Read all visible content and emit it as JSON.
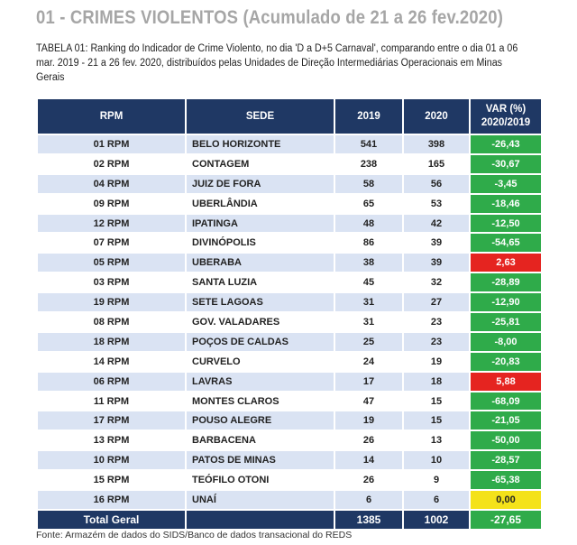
{
  "title": "01 - CRIMES VIOLENTOS (Acumulado de 21 a 26 fev.2020)",
  "caption": "TABELA 01: Ranking do Indicador de Crime Violento, no dia 'D a D+5 Carnaval', comparando entre o dia 01 a 06 mar. 2019 - 21 a 26 fev. 2020, distribuídos pelas Unidades de Direção Intermediárias Operacionais em Minas Gerais",
  "table": {
    "headers": [
      "RPM",
      "SEDE",
      "2019",
      "2020",
      "VAR (%)",
      "2020/2019"
    ],
    "rows": [
      {
        "rpm": "01 RPM",
        "sede": "BELO HORIZONTE",
        "y2019": "541",
        "y2020": "398",
        "var": "-26,43",
        "status": "green"
      },
      {
        "rpm": "02 RPM",
        "sede": "CONTAGEM",
        "y2019": "238",
        "y2020": "165",
        "var": "-30,67",
        "status": "green"
      },
      {
        "rpm": "04 RPM",
        "sede": "JUIZ DE FORA",
        "y2019": "58",
        "y2020": "56",
        "var": "-3,45",
        "status": "green"
      },
      {
        "rpm": "09 RPM",
        "sede": "UBERLÂNDIA",
        "y2019": "65",
        "y2020": "53",
        "var": "-18,46",
        "status": "green"
      },
      {
        "rpm": "12 RPM",
        "sede": "IPATINGA",
        "y2019": "48",
        "y2020": "42",
        "var": "-12,50",
        "status": "green"
      },
      {
        "rpm": "07 RPM",
        "sede": "DIVINÓPOLIS",
        "y2019": "86",
        "y2020": "39",
        "var": "-54,65",
        "status": "green"
      },
      {
        "rpm": "05 RPM",
        "sede": "UBERABA",
        "y2019": "38",
        "y2020": "39",
        "var": "2,63",
        "status": "red"
      },
      {
        "rpm": "03 RPM",
        "sede": "SANTA LUZIA",
        "y2019": "45",
        "y2020": "32",
        "var": "-28,89",
        "status": "green"
      },
      {
        "rpm": "19 RPM",
        "sede": "SETE LAGOAS",
        "y2019": "31",
        "y2020": "27",
        "var": "-12,90",
        "status": "green"
      },
      {
        "rpm": "08 RPM",
        "sede": "GOV. VALADARES",
        "y2019": "31",
        "y2020": "23",
        "var": "-25,81",
        "status": "green"
      },
      {
        "rpm": "18 RPM",
        "sede": "POÇOS DE CALDAS",
        "y2019": "25",
        "y2020": "23",
        "var": "-8,00",
        "status": "green"
      },
      {
        "rpm": "14 RPM",
        "sede": "CURVELO",
        "y2019": "24",
        "y2020": "19",
        "var": "-20,83",
        "status": "green"
      },
      {
        "rpm": "06 RPM",
        "sede": "LAVRAS",
        "y2019": "17",
        "y2020": "18",
        "var": "5,88",
        "status": "red"
      },
      {
        "rpm": "11 RPM",
        "sede": "MONTES CLAROS",
        "y2019": "47",
        "y2020": "15",
        "var": "-68,09",
        "status": "green"
      },
      {
        "rpm": "17 RPM",
        "sede": "POUSO ALEGRE",
        "y2019": "19",
        "y2020": "15",
        "var": "-21,05",
        "status": "green"
      },
      {
        "rpm": "13 RPM",
        "sede": "BARBACENA",
        "y2019": "26",
        "y2020": "13",
        "var": "-50,00",
        "status": "green"
      },
      {
        "rpm": "10 RPM",
        "sede": "PATOS DE MINAS",
        "y2019": "14",
        "y2020": "10",
        "var": "-28,57",
        "status": "green"
      },
      {
        "rpm": "15 RPM",
        "sede": "TEÓFILO OTONI",
        "y2019": "26",
        "y2020": "9",
        "var": "-65,38",
        "status": "green"
      },
      {
        "rpm": "16 RPM",
        "sede": "UNAÍ",
        "y2019": "6",
        "y2020": "6",
        "var": "0,00",
        "status": "yellow"
      }
    ],
    "total": {
      "label": "Total Geral",
      "y2019": "1385",
      "y2020": "1002",
      "var": "-27,65"
    }
  },
  "colors": {
    "header": "#1f3864",
    "green": "#2fab4a",
    "red": "#e52420",
    "yellow": "#f4e21a",
    "row_alt": "#dae3f3"
  },
  "footer": "Fonte: Armazém de dados do SIDS/Banco de dados transacional do REDS"
}
